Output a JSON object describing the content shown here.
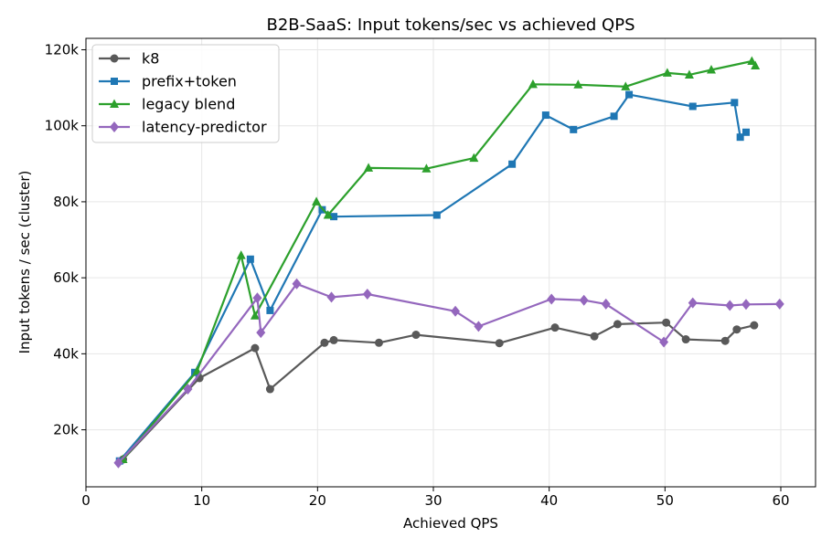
{
  "chart_data": {
    "type": "line",
    "title": "B2B-SaaS: Input tokens/sec vs achieved QPS",
    "xlabel": "Achieved QPS",
    "ylabel": "Input tokens / sec (cluster)",
    "xlim": [
      0,
      63
    ],
    "ylim": [
      5000,
      123000
    ],
    "x_ticks": [
      0,
      10,
      20,
      30,
      40,
      50,
      60
    ],
    "x_tick_labels": [
      "0",
      "10",
      "20",
      "30",
      "40",
      "50",
      "60"
    ],
    "y_ticks": [
      20000,
      40000,
      60000,
      80000,
      100000,
      120000
    ],
    "y_tick_labels": [
      "20k",
      "40k",
      "60k",
      "80k",
      "100k",
      "120k"
    ],
    "grid": true,
    "legend_position": "top-left",
    "series": [
      {
        "name": "k8",
        "color": "#595959",
        "marker": "circle",
        "points": [
          [
            3.2,
            12200
          ],
          [
            9.8,
            33600
          ],
          [
            14.6,
            41500
          ],
          [
            15.9,
            30700
          ],
          [
            20.6,
            42900
          ],
          [
            21.4,
            43600
          ],
          [
            25.3,
            42900
          ],
          [
            28.5,
            45000
          ],
          [
            35.7,
            42800
          ],
          [
            40.5,
            46900
          ],
          [
            43.9,
            44600
          ],
          [
            45.9,
            47800
          ],
          [
            50.1,
            48200
          ],
          [
            51.8,
            43800
          ],
          [
            55.2,
            43400
          ],
          [
            56.2,
            46400
          ],
          [
            57.7,
            47500
          ]
        ]
      },
      {
        "name": "prefix+token",
        "color": "#1f77b4",
        "marker": "square",
        "points": [
          [
            2.9,
            11800
          ],
          [
            9.4,
            35100
          ],
          [
            14.2,
            64900
          ],
          [
            15.9,
            51400
          ],
          [
            20.4,
            77900
          ],
          [
            21.4,
            76100
          ],
          [
            30.3,
            76500
          ],
          [
            36.8,
            89900
          ],
          [
            39.7,
            102800
          ],
          [
            42.1,
            99000
          ],
          [
            45.6,
            102500
          ],
          [
            46.9,
            108200
          ],
          [
            52.4,
            105100
          ],
          [
            56.0,
            106100
          ],
          [
            56.5,
            97000
          ],
          [
            57.0,
            98300
          ]
        ]
      },
      {
        "name": "legacy blend",
        "color": "#2ca02c",
        "marker": "triangle",
        "points": [
          [
            3.2,
            12200
          ],
          [
            9.6,
            35500
          ],
          [
            13.4,
            65900
          ],
          [
            14.6,
            50000
          ],
          [
            19.9,
            80000
          ],
          [
            20.9,
            76500
          ],
          [
            24.4,
            88900
          ],
          [
            29.4,
            88700
          ],
          [
            33.5,
            91500
          ],
          [
            38.6,
            110900
          ],
          [
            42.5,
            110800
          ],
          [
            46.6,
            110300
          ],
          [
            50.2,
            113900
          ],
          [
            52.1,
            113400
          ],
          [
            54.0,
            114700
          ],
          [
            57.5,
            117000
          ],
          [
            57.8,
            115800
          ]
        ]
      },
      {
        "name": "latency-predictor",
        "color": "#9467bd",
        "marker": "diamond",
        "points": [
          [
            2.8,
            11300
          ],
          [
            8.8,
            30700
          ],
          [
            14.8,
            54700
          ],
          [
            15.1,
            45600
          ],
          [
            18.2,
            58400
          ],
          [
            21.2,
            54900
          ],
          [
            24.3,
            55700
          ],
          [
            31.9,
            51200
          ],
          [
            33.9,
            47200
          ],
          [
            40.2,
            54400
          ],
          [
            43.0,
            54100
          ],
          [
            44.9,
            53100
          ],
          [
            49.9,
            43100
          ],
          [
            52.4,
            53400
          ],
          [
            55.6,
            52700
          ],
          [
            57.0,
            53000
          ],
          [
            59.9,
            53100
          ]
        ]
      }
    ]
  }
}
